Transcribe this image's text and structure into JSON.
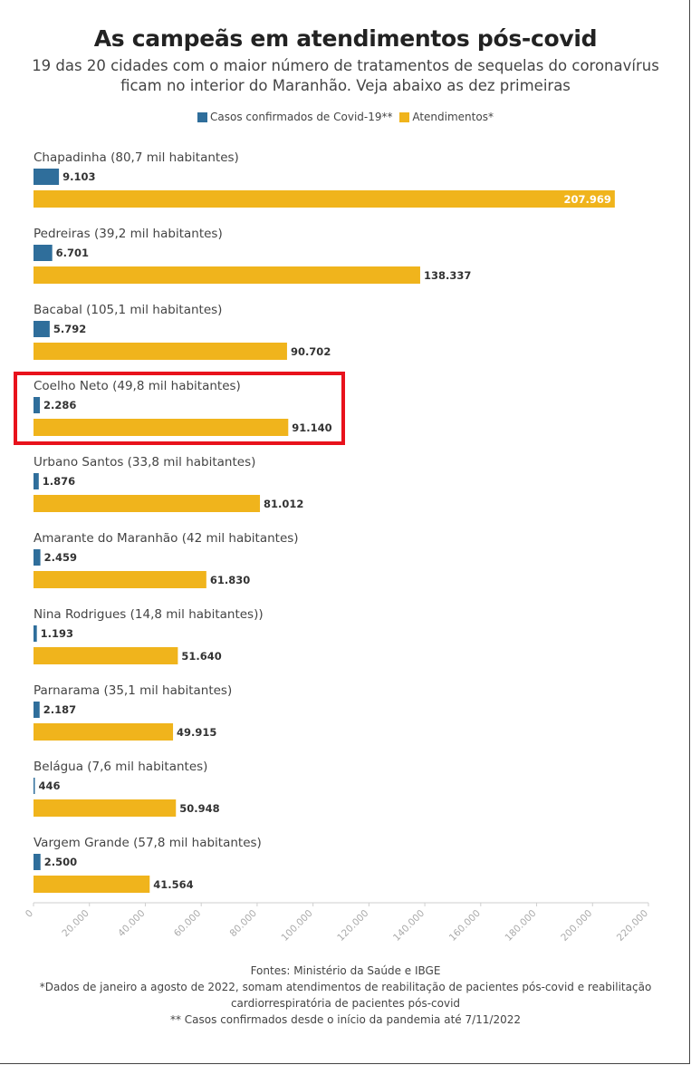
{
  "header": {
    "title": "As campeãs em atendimentos pós-covid",
    "subtitle": "19 das 20 cidades com o maior número de tratamentos de sequelas do coronavírus ficam no interior do Maranhão. Veja abaixo as dez primeiras"
  },
  "colors": {
    "casos": "#2f6e9b",
    "atendimentos": "#f0b41c",
    "highlight": "#e8121c",
    "axis": "#cfcfcf"
  },
  "chart_data": {
    "type": "bar",
    "orientation": "horizontal",
    "title": "As campeãs em atendimentos pós-covid",
    "categories": [
      "Chapadinha (80,7 mil habitantes)",
      "Pedreiras (39,2 mil habitantes)",
      "Bacabal (105,1 mil habitantes)",
      "Coelho Neto (49,8 mil habitantes)",
      "Urbano Santos (33,8 mil habitantes)",
      "Amarante do Maranhão (42 mil habitantes)",
      "Nina Rodrigues (14,8 mil habitantes))",
      "Parnarama (35,1 mil habitantes)",
      "Belágua (7,6 mil habitantes)",
      "Vargem Grande (57,8 mil habitantes)"
    ],
    "series": [
      {
        "name": "Casos confirmados de Covid-19**",
        "values": [
          9103,
          6701,
          5792,
          2286,
          1876,
          2459,
          1193,
          2187,
          446,
          2500
        ],
        "labels": [
          "9.103",
          "6.701",
          "5.792",
          "2.286",
          "1.876",
          "2.459",
          "1.193",
          "2.187",
          "446",
          "2.500"
        ]
      },
      {
        "name": "Atendimentos*",
        "values": [
          207969,
          138337,
          90702,
          91140,
          81012,
          61830,
          51640,
          49915,
          50948,
          41564
        ],
        "labels": [
          "207.969",
          "138.337",
          "90.702",
          "91.140",
          "81.012",
          "61.830",
          "51.640",
          "49.915",
          "50.948",
          "41.564"
        ]
      }
    ],
    "xlim": [
      0,
      220000
    ],
    "ticks": [
      0,
      20000,
      40000,
      60000,
      80000,
      100000,
      120000,
      140000,
      160000,
      180000,
      200000,
      220000
    ],
    "tick_labels": [
      "0",
      "20.000",
      "40.000",
      "60.000",
      "80.000",
      "100.000",
      "120.000",
      "140.000",
      "160.000",
      "180.000",
      "200.000",
      "220.000"
    ],
    "legend": "top-center",
    "highlighted_category": "Coelho Neto (49,8 mil habitantes)"
  },
  "footer": {
    "source": "Fontes: Ministério da Saúde e IBGE",
    "note1": "*Dados de janeiro a agosto de 2022, somam atendimentos de reabilitação de pacientes pós-covid e reabilitação cardiorrespiratória de pacientes pós-covid",
    "note2": "** Casos confirmados desde o início da pandemia até 7/11/2022"
  }
}
